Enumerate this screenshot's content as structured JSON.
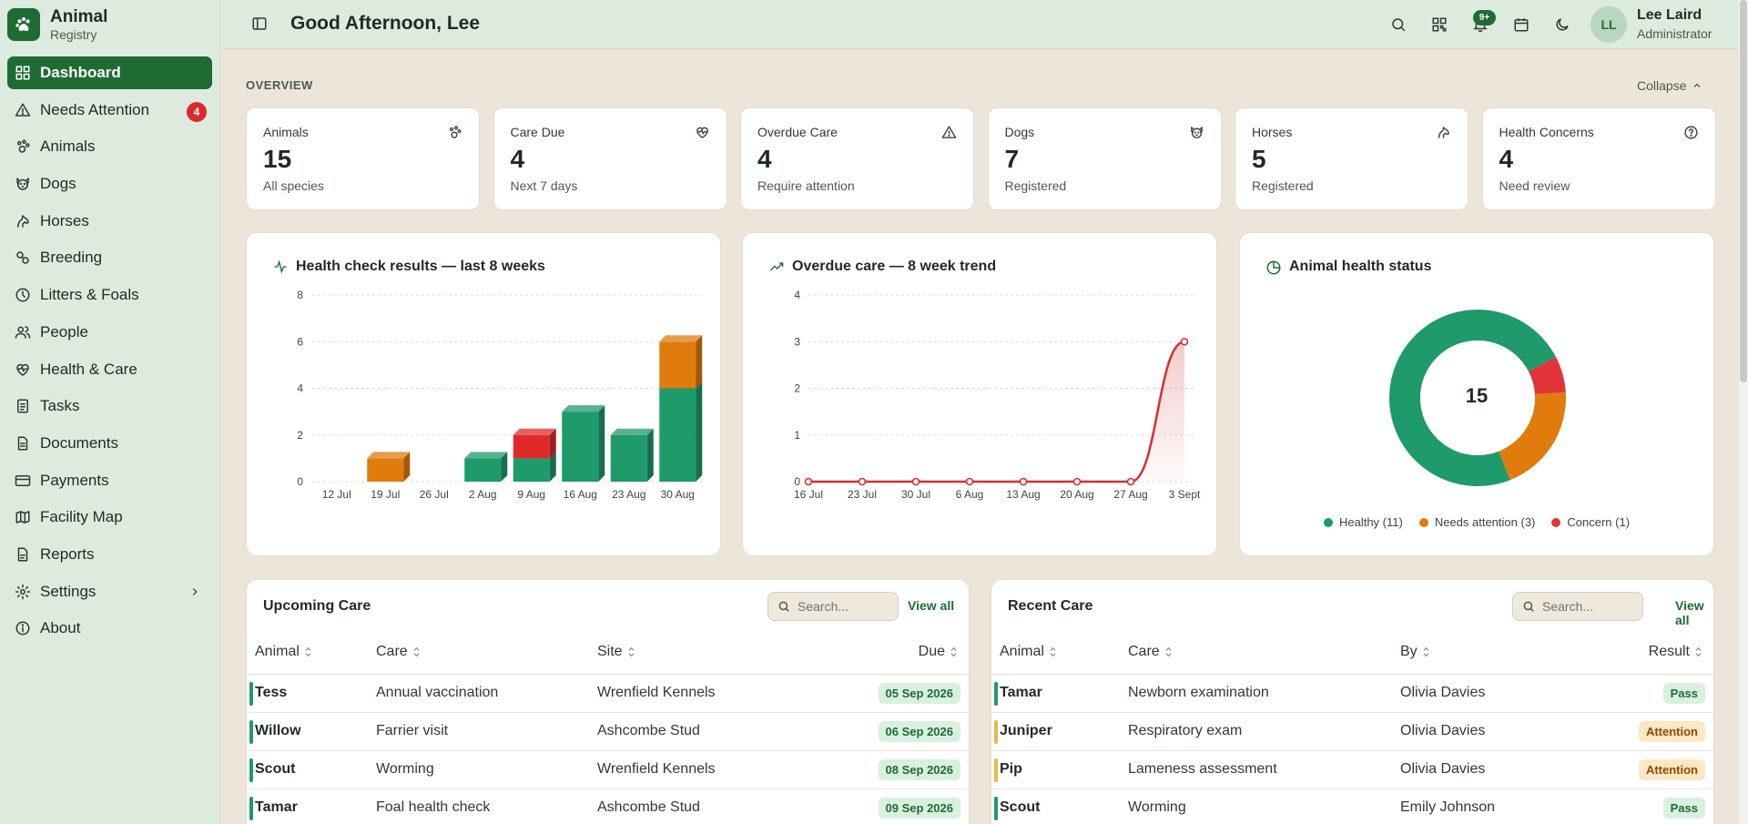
{
  "brand": {
    "name": "Animal",
    "sub": "Registry"
  },
  "nav": [
    {
      "label": "Dashboard",
      "icon": "dashboard-icon",
      "active": true
    },
    {
      "label": "Needs Attention",
      "icon": "warning-icon",
      "badge": "4"
    },
    {
      "label": "Animals",
      "icon": "paw-icon"
    },
    {
      "label": "Dogs",
      "icon": "dog-icon"
    },
    {
      "label": "Horses",
      "icon": "horse-icon"
    },
    {
      "label": "Breeding",
      "icon": "breeding-icon"
    },
    {
      "label": "Litters & Foals",
      "icon": "litters-icon"
    },
    {
      "label": "People",
      "icon": "people-icon"
    },
    {
      "label": "Health & Care",
      "icon": "heart-pulse-icon"
    },
    {
      "label": "Tasks",
      "icon": "tasks-icon"
    },
    {
      "label": "Documents",
      "icon": "document-icon"
    },
    {
      "label": "Payments",
      "icon": "card-icon"
    },
    {
      "label": "Facility Map",
      "icon": "map-icon"
    },
    {
      "label": "Reports",
      "icon": "report-icon"
    },
    {
      "label": "Settings",
      "icon": "gear-icon",
      "chevron": true
    },
    {
      "label": "About",
      "icon": "info-icon"
    }
  ],
  "header": {
    "greeting": "Good Afternoon, Lee",
    "notif_badge": "9+",
    "user": {
      "initials": "LL",
      "name": "Lee Laird",
      "role": "Administrator"
    }
  },
  "overview": {
    "label": "OVERVIEW",
    "collapse_label": "Collapse",
    "stats": [
      {
        "label": "Animals",
        "value": "15",
        "sub": "All species",
        "icon": "paw-icon"
      },
      {
        "label": "Care Due",
        "value": "4",
        "sub": "Next 7 days",
        "icon": "heart-pulse-icon"
      },
      {
        "label": "Overdue Care",
        "value": "4",
        "sub": "Require attention",
        "icon": "warning-icon"
      },
      {
        "label": "Dogs",
        "value": "7",
        "sub": "Registered",
        "icon": "dog-icon"
      },
      {
        "label": "Horses",
        "value": "5",
        "sub": "Registered",
        "icon": "horse-icon"
      },
      {
        "label": "Health Concerns",
        "value": "4",
        "sub": "Need review",
        "icon": "concern-icon"
      }
    ]
  },
  "chart_data": [
    {
      "type": "bar",
      "stacked": true,
      "title": "Health check results — last 8 weeks",
      "categories": [
        "12 Jul",
        "19 Jul",
        "26 Jul",
        "2 Aug",
        "9 Aug",
        "16 Aug",
        "23 Aug",
        "30 Aug"
      ],
      "series": [
        {
          "values": [
            0,
            0,
            0,
            1,
            1,
            3,
            2,
            4
          ],
          "color": "#1f9a6a"
        },
        {
          "values": [
            0,
            1,
            0,
            0,
            0,
            0,
            0,
            2
          ],
          "color": "#e07b0c"
        },
        {
          "values": [
            0,
            0,
            0,
            0,
            1,
            0,
            0,
            0
          ],
          "color": "#e02a2a"
        }
      ],
      "yticks": [
        "0",
        "2",
        "4",
        "6",
        "8"
      ],
      "ylim": [
        0,
        8
      ],
      "grid": true
    },
    {
      "type": "line",
      "title": "Overdue care — 8 week trend",
      "categories": [
        "16 Jul",
        "23 Jul",
        "30 Jul",
        "6 Aug",
        "13 Aug",
        "20 Aug",
        "27 Aug",
        "3 Sept"
      ],
      "values": [
        0,
        0,
        0,
        0,
        0,
        0,
        0,
        3
      ],
      "color": "#d62f2f",
      "yticks": [
        "0",
        "1",
        "2",
        "3",
        "4"
      ],
      "ylim": [
        0,
        4
      ],
      "grid": true
    },
    {
      "type": "pie",
      "donut": true,
      "title": "Animal health status",
      "center_label": "15",
      "slices": [
        {
          "label": "Healthy (11)",
          "value": 11,
          "color": "#1f9a6a"
        },
        {
          "label": "Needs attention (3)",
          "value": 3,
          "color": "#e07b0c"
        },
        {
          "label": "Concern (1)",
          "value": 1,
          "color": "#e0343a"
        }
      ],
      "legend": "bottom"
    }
  ],
  "upcoming": {
    "title": "Upcoming Care",
    "search_placeholder": "Search...",
    "view_all": "View all",
    "columns": [
      "Animal",
      "Care",
      "Site",
      "Due"
    ],
    "rows": [
      {
        "animal": "Tess",
        "care": "Annual vaccination",
        "site": "Wrenfield Kennels",
        "due": "05 Sep 2026",
        "color": "#1f9a6a"
      },
      {
        "animal": "Willow",
        "care": "Farrier visit",
        "site": "Ashcombe Stud",
        "due": "06 Sep 2026",
        "color": "#1f9a6a"
      },
      {
        "animal": "Scout",
        "care": "Worming",
        "site": "Wrenfield Kennels",
        "due": "08 Sep 2026",
        "color": "#1f9a6a"
      },
      {
        "animal": "Tamar",
        "care": "Foal health check",
        "site": "Ashcombe Stud",
        "due": "09 Sep 2026",
        "color": "#1f9a6a"
      }
    ]
  },
  "recent": {
    "title": "Recent Care",
    "search_placeholder": "Search...",
    "view_all": "View all",
    "columns": [
      "Animal",
      "Care",
      "By",
      "Result"
    ],
    "rows": [
      {
        "animal": "Tamar",
        "care": "Newborn examination",
        "by": "Olivia Davies",
        "result": "Pass",
        "kind": "pass",
        "color": "#1f9a6a"
      },
      {
        "animal": "Juniper",
        "care": "Respiratory exam",
        "by": "Olivia Davies",
        "result": "Attention",
        "kind": "attn",
        "color": "#e8b84a"
      },
      {
        "animal": "Pip",
        "care": "Lameness assessment",
        "by": "Olivia Davies",
        "result": "Attention",
        "kind": "attn",
        "color": "#e8b84a"
      },
      {
        "animal": "Scout",
        "care": "Worming",
        "by": "Emily Johnson",
        "result": "Pass",
        "kind": "pass",
        "color": "#1f9a6a"
      }
    ]
  }
}
